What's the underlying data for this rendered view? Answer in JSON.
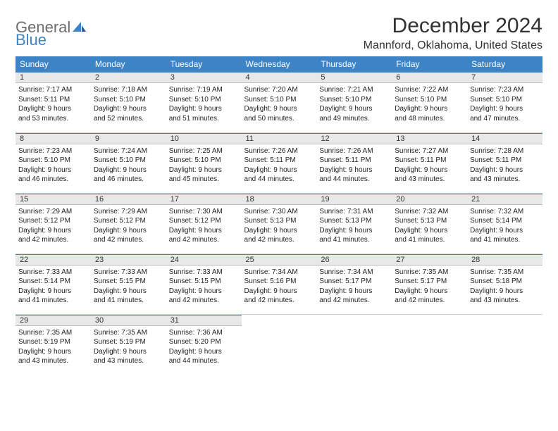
{
  "brand": {
    "part1": "General",
    "part2": "Blue"
  },
  "title": "December 2024",
  "location": "Mannford, Oklahoma, United States",
  "colors": {
    "header_bg": "#3d84c6",
    "header_text": "#ffffff",
    "daynum_bg": "#e8e8e8",
    "border": "#3d84c6",
    "page_bg": "#ffffff"
  },
  "weekdays": [
    "Sunday",
    "Monday",
    "Tuesday",
    "Wednesday",
    "Thursday",
    "Friday",
    "Saturday"
  ],
  "weeks": [
    [
      {
        "n": "1",
        "sr": "Sunrise: 7:17 AM",
        "ss": "Sunset: 5:11 PM",
        "d1": "Daylight: 9 hours",
        "d2": "and 53 minutes."
      },
      {
        "n": "2",
        "sr": "Sunrise: 7:18 AM",
        "ss": "Sunset: 5:10 PM",
        "d1": "Daylight: 9 hours",
        "d2": "and 52 minutes."
      },
      {
        "n": "3",
        "sr": "Sunrise: 7:19 AM",
        "ss": "Sunset: 5:10 PM",
        "d1": "Daylight: 9 hours",
        "d2": "and 51 minutes."
      },
      {
        "n": "4",
        "sr": "Sunrise: 7:20 AM",
        "ss": "Sunset: 5:10 PM",
        "d1": "Daylight: 9 hours",
        "d2": "and 50 minutes."
      },
      {
        "n": "5",
        "sr": "Sunrise: 7:21 AM",
        "ss": "Sunset: 5:10 PM",
        "d1": "Daylight: 9 hours",
        "d2": "and 49 minutes."
      },
      {
        "n": "6",
        "sr": "Sunrise: 7:22 AM",
        "ss": "Sunset: 5:10 PM",
        "d1": "Daylight: 9 hours",
        "d2": "and 48 minutes."
      },
      {
        "n": "7",
        "sr": "Sunrise: 7:23 AM",
        "ss": "Sunset: 5:10 PM",
        "d1": "Daylight: 9 hours",
        "d2": "and 47 minutes."
      }
    ],
    [
      {
        "n": "8",
        "sr": "Sunrise: 7:23 AM",
        "ss": "Sunset: 5:10 PM",
        "d1": "Daylight: 9 hours",
        "d2": "and 46 minutes."
      },
      {
        "n": "9",
        "sr": "Sunrise: 7:24 AM",
        "ss": "Sunset: 5:10 PM",
        "d1": "Daylight: 9 hours",
        "d2": "and 46 minutes."
      },
      {
        "n": "10",
        "sr": "Sunrise: 7:25 AM",
        "ss": "Sunset: 5:10 PM",
        "d1": "Daylight: 9 hours",
        "d2": "and 45 minutes."
      },
      {
        "n": "11",
        "sr": "Sunrise: 7:26 AM",
        "ss": "Sunset: 5:11 PM",
        "d1": "Daylight: 9 hours",
        "d2": "and 44 minutes."
      },
      {
        "n": "12",
        "sr": "Sunrise: 7:26 AM",
        "ss": "Sunset: 5:11 PM",
        "d1": "Daylight: 9 hours",
        "d2": "and 44 minutes."
      },
      {
        "n": "13",
        "sr": "Sunrise: 7:27 AM",
        "ss": "Sunset: 5:11 PM",
        "d1": "Daylight: 9 hours",
        "d2": "and 43 minutes."
      },
      {
        "n": "14",
        "sr": "Sunrise: 7:28 AM",
        "ss": "Sunset: 5:11 PM",
        "d1": "Daylight: 9 hours",
        "d2": "and 43 minutes."
      }
    ],
    [
      {
        "n": "15",
        "sr": "Sunrise: 7:29 AM",
        "ss": "Sunset: 5:12 PM",
        "d1": "Daylight: 9 hours",
        "d2": "and 42 minutes."
      },
      {
        "n": "16",
        "sr": "Sunrise: 7:29 AM",
        "ss": "Sunset: 5:12 PM",
        "d1": "Daylight: 9 hours",
        "d2": "and 42 minutes."
      },
      {
        "n": "17",
        "sr": "Sunrise: 7:30 AM",
        "ss": "Sunset: 5:12 PM",
        "d1": "Daylight: 9 hours",
        "d2": "and 42 minutes."
      },
      {
        "n": "18",
        "sr": "Sunrise: 7:30 AM",
        "ss": "Sunset: 5:13 PM",
        "d1": "Daylight: 9 hours",
        "d2": "and 42 minutes."
      },
      {
        "n": "19",
        "sr": "Sunrise: 7:31 AM",
        "ss": "Sunset: 5:13 PM",
        "d1": "Daylight: 9 hours",
        "d2": "and 41 minutes."
      },
      {
        "n": "20",
        "sr": "Sunrise: 7:32 AM",
        "ss": "Sunset: 5:13 PM",
        "d1": "Daylight: 9 hours",
        "d2": "and 41 minutes."
      },
      {
        "n": "21",
        "sr": "Sunrise: 7:32 AM",
        "ss": "Sunset: 5:14 PM",
        "d1": "Daylight: 9 hours",
        "d2": "and 41 minutes."
      }
    ],
    [
      {
        "n": "22",
        "sr": "Sunrise: 7:33 AM",
        "ss": "Sunset: 5:14 PM",
        "d1": "Daylight: 9 hours",
        "d2": "and 41 minutes."
      },
      {
        "n": "23",
        "sr": "Sunrise: 7:33 AM",
        "ss": "Sunset: 5:15 PM",
        "d1": "Daylight: 9 hours",
        "d2": "and 41 minutes."
      },
      {
        "n": "24",
        "sr": "Sunrise: 7:33 AM",
        "ss": "Sunset: 5:15 PM",
        "d1": "Daylight: 9 hours",
        "d2": "and 42 minutes."
      },
      {
        "n": "25",
        "sr": "Sunrise: 7:34 AM",
        "ss": "Sunset: 5:16 PM",
        "d1": "Daylight: 9 hours",
        "d2": "and 42 minutes."
      },
      {
        "n": "26",
        "sr": "Sunrise: 7:34 AM",
        "ss": "Sunset: 5:17 PM",
        "d1": "Daylight: 9 hours",
        "d2": "and 42 minutes."
      },
      {
        "n": "27",
        "sr": "Sunrise: 7:35 AM",
        "ss": "Sunset: 5:17 PM",
        "d1": "Daylight: 9 hours",
        "d2": "and 42 minutes."
      },
      {
        "n": "28",
        "sr": "Sunrise: 7:35 AM",
        "ss": "Sunset: 5:18 PM",
        "d1": "Daylight: 9 hours",
        "d2": "and 43 minutes."
      }
    ],
    [
      {
        "n": "29",
        "sr": "Sunrise: 7:35 AM",
        "ss": "Sunset: 5:19 PM",
        "d1": "Daylight: 9 hours",
        "d2": "and 43 minutes."
      },
      {
        "n": "30",
        "sr": "Sunrise: 7:35 AM",
        "ss": "Sunset: 5:19 PM",
        "d1": "Daylight: 9 hours",
        "d2": "and 43 minutes."
      },
      {
        "n": "31",
        "sr": "Sunrise: 7:36 AM",
        "ss": "Sunset: 5:20 PM",
        "d1": "Daylight: 9 hours",
        "d2": "and 44 minutes."
      },
      null,
      null,
      null,
      null
    ]
  ]
}
